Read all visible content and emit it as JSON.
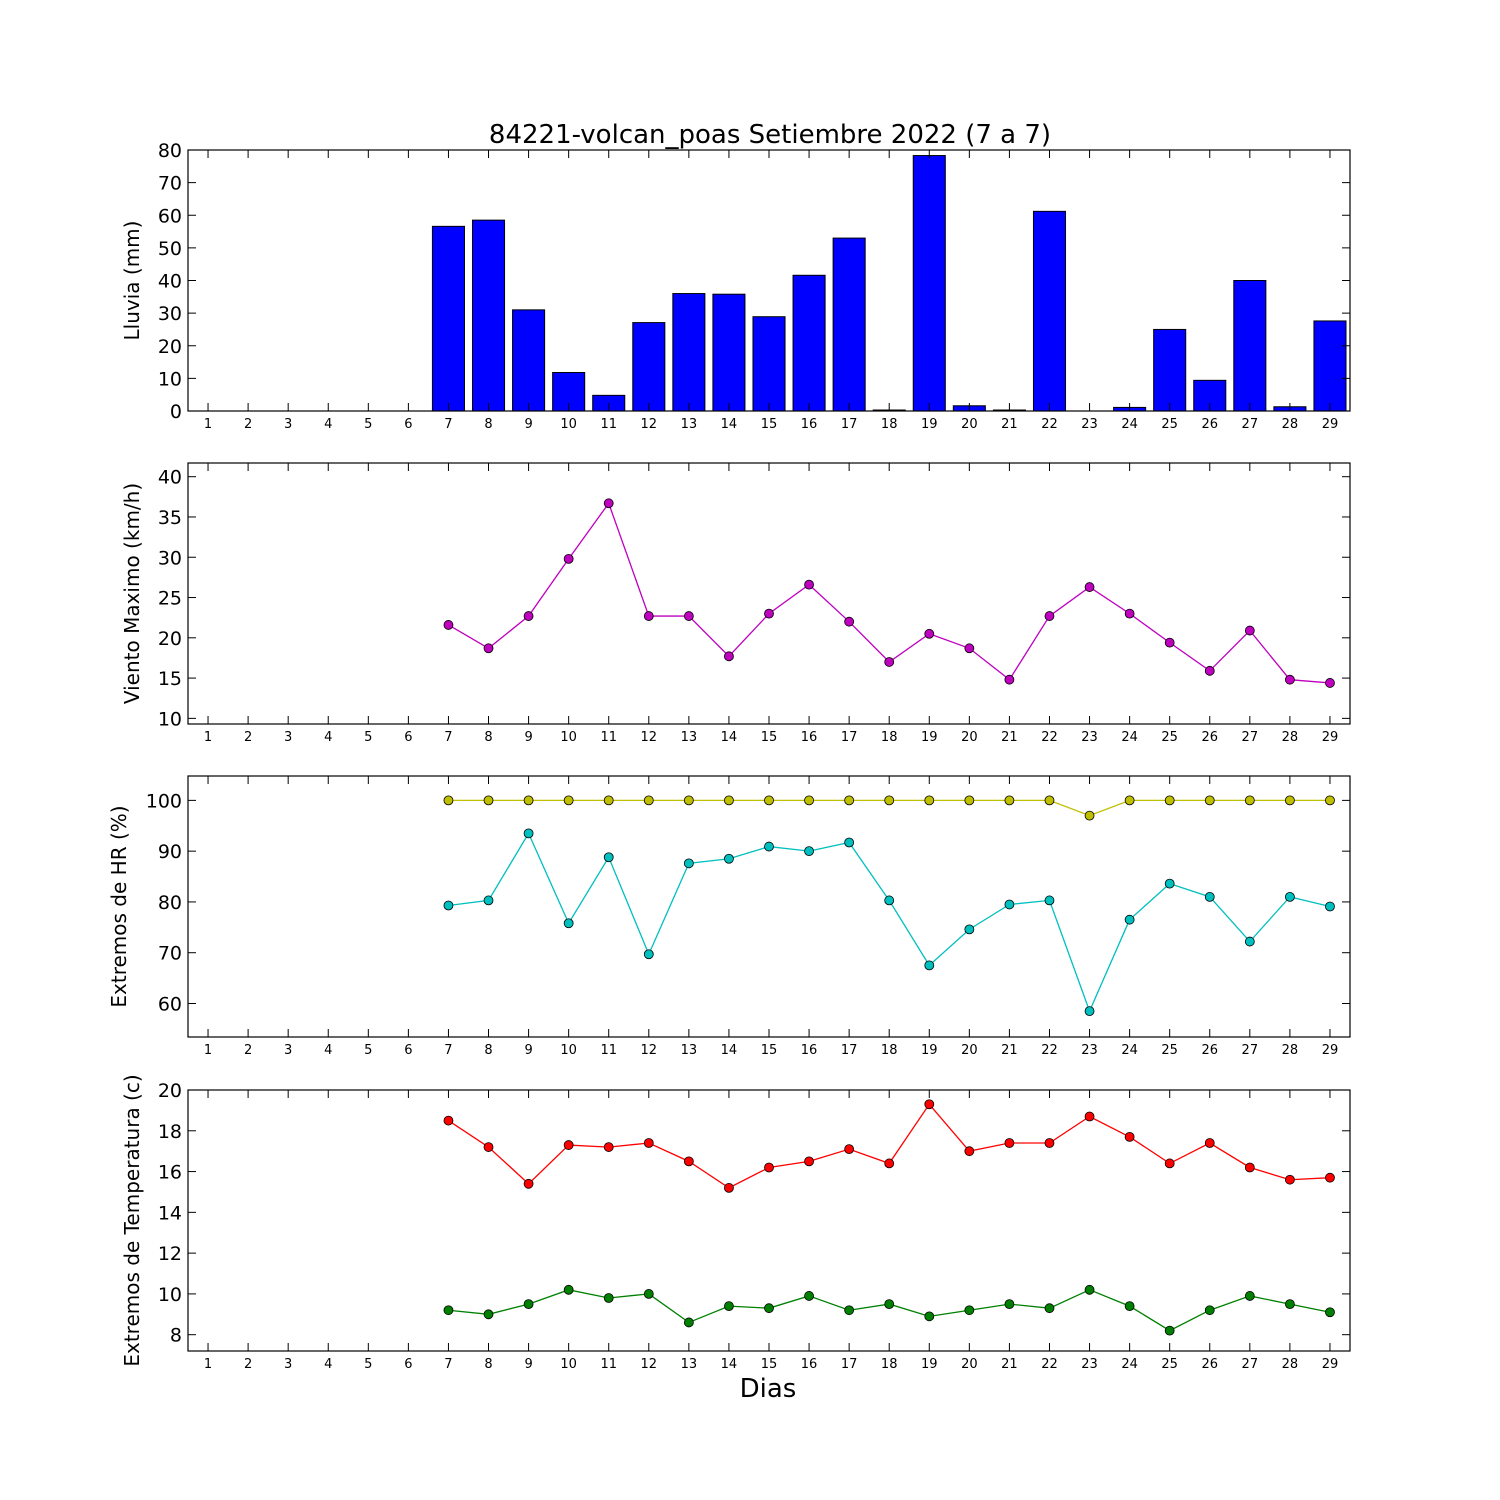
{
  "figure": {
    "title": "84221-volcan_poas Setiembre 2022  (7 a 7)",
    "xlabel": "Dias"
  },
  "chart_data": [
    {
      "type": "bar",
      "ylabel": "Lluvia (mm)",
      "ylim": [
        0,
        80
      ],
      "yticks": [
        0,
        10,
        20,
        30,
        40,
        50,
        60,
        70,
        80
      ],
      "x": [
        1,
        2,
        3,
        4,
        5,
        6,
        7,
        8,
        9,
        10,
        11,
        12,
        13,
        14,
        15,
        16,
        17,
        18,
        19,
        20,
        21,
        22,
        23,
        24,
        25,
        26,
        27,
        28,
        29
      ],
      "xlim": [
        0.5,
        29.5
      ],
      "series": [
        {
          "color": "#0000ff",
          "values": [
            null,
            null,
            null,
            null,
            null,
            null,
            56.6,
            58.5,
            31.0,
            11.8,
            4.8,
            27.1,
            36.0,
            35.8,
            28.9,
            41.6,
            53.0,
            0.3,
            78.3,
            1.6,
            0.3,
            61.2,
            0.0,
            1.1,
            25.0,
            9.4,
            40.0,
            1.3,
            27.6
          ]
        }
      ]
    },
    {
      "type": "line",
      "ylabel": "Viento Maximo (km/h)",
      "ylim": [
        9.3,
        41.7
      ],
      "yticks": [
        10,
        15,
        20,
        25,
        30,
        35,
        40
      ],
      "x": [
        1,
        2,
        3,
        4,
        5,
        6,
        7,
        8,
        9,
        10,
        11,
        12,
        13,
        14,
        15,
        16,
        17,
        18,
        19,
        20,
        21,
        22,
        23,
        24,
        25,
        26,
        27,
        28,
        29
      ],
      "xlim": [
        0.5,
        29.5
      ],
      "series": [
        {
          "color": "#bf00bf",
          "values": [
            null,
            null,
            null,
            null,
            null,
            null,
            21.6,
            18.7,
            22.7,
            29.8,
            36.7,
            22.7,
            22.7,
            17.7,
            23.0,
            26.6,
            22.0,
            17.0,
            20.5,
            18.7,
            14.8,
            22.7,
            26.3,
            23.0,
            19.4,
            15.9,
            20.9,
            14.8,
            14.4
          ]
        }
      ]
    },
    {
      "type": "line",
      "ylabel": "Extremos de HR (%)",
      "ylim": [
        53.4,
        104.8
      ],
      "yticks": [
        60,
        70,
        80,
        90,
        100
      ],
      "x": [
        1,
        2,
        3,
        4,
        5,
        6,
        7,
        8,
        9,
        10,
        11,
        12,
        13,
        14,
        15,
        16,
        17,
        18,
        19,
        20,
        21,
        22,
        23,
        24,
        25,
        26,
        27,
        28,
        29
      ],
      "xlim": [
        0.5,
        29.5
      ],
      "series": [
        {
          "color": "#bfbf00",
          "values": [
            null,
            null,
            null,
            null,
            null,
            null,
            100,
            100,
            100,
            100,
            100,
            100,
            100,
            100,
            100,
            100,
            100,
            100,
            100,
            100,
            100,
            100,
            97,
            100,
            100,
            100,
            100,
            100,
            100
          ]
        },
        {
          "color": "#00bfbf",
          "values": [
            null,
            null,
            null,
            null,
            null,
            null,
            79.3,
            80.3,
            93.5,
            75.8,
            88.8,
            69.7,
            87.6,
            88.5,
            90.9,
            90.0,
            91.7,
            80.3,
            67.5,
            74.6,
            79.5,
            80.3,
            58.5,
            76.5,
            83.6,
            81.0,
            72.2,
            81.0,
            79.1
          ]
        }
      ]
    },
    {
      "type": "line",
      "ylabel": "Extremos de Temperatura (c)",
      "ylim": [
        7.2,
        20.0
      ],
      "yticks": [
        8,
        10,
        12,
        14,
        16,
        18,
        20
      ],
      "x": [
        1,
        2,
        3,
        4,
        5,
        6,
        7,
        8,
        9,
        10,
        11,
        12,
        13,
        14,
        15,
        16,
        17,
        18,
        19,
        20,
        21,
        22,
        23,
        24,
        25,
        26,
        27,
        28,
        29
      ],
      "xlim": [
        0.5,
        29.5
      ],
      "series": [
        {
          "color": "#ff0000",
          "values": [
            null,
            null,
            null,
            null,
            null,
            null,
            18.5,
            17.2,
            15.4,
            17.3,
            17.2,
            17.4,
            16.5,
            15.2,
            16.2,
            16.5,
            17.1,
            16.4,
            19.3,
            17.0,
            17.4,
            17.4,
            18.7,
            17.7,
            16.4,
            17.4,
            16.2,
            15.6,
            15.7
          ]
        },
        {
          "color": "#008000",
          "values": [
            null,
            null,
            null,
            null,
            null,
            null,
            9.2,
            9.0,
            9.5,
            10.2,
            9.8,
            10.0,
            8.6,
            9.4,
            9.3,
            9.9,
            9.2,
            9.5,
            8.9,
            9.2,
            9.5,
            9.3,
            10.2,
            9.4,
            8.2,
            9.2,
            9.9,
            9.5,
            9.1
          ]
        }
      ]
    }
  ]
}
